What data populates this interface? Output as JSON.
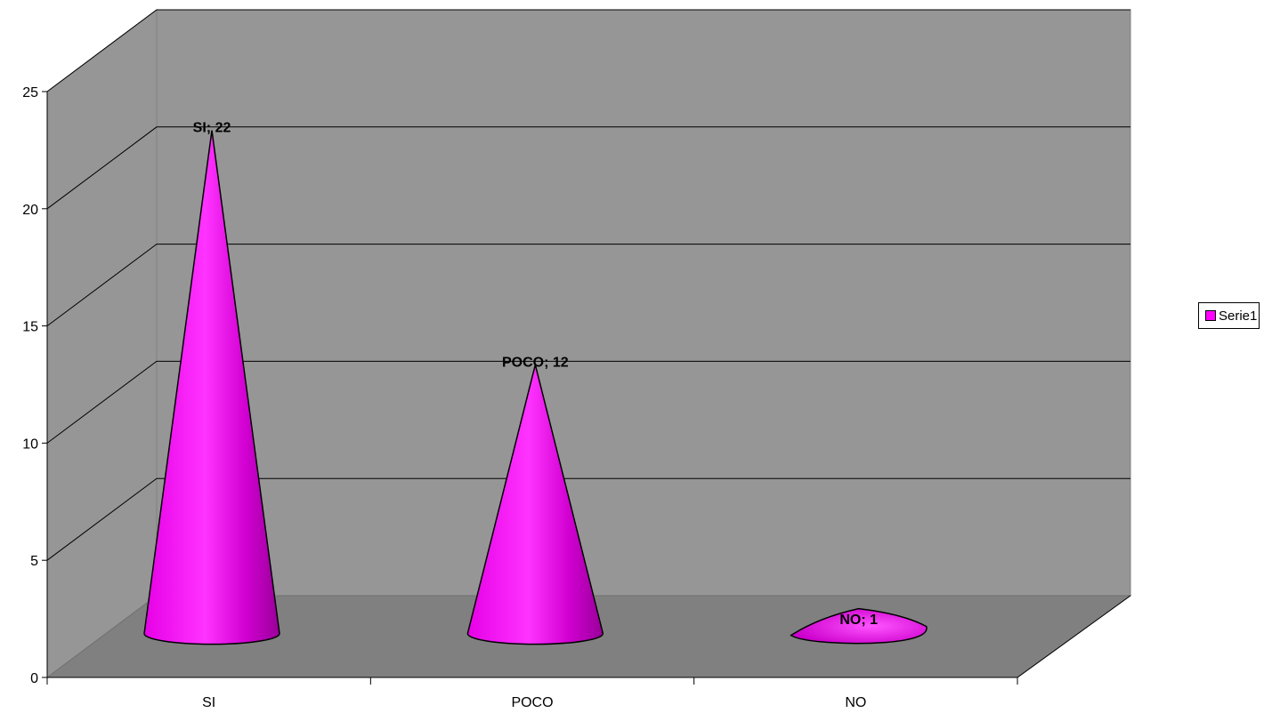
{
  "chart_data": {
    "type": "bar",
    "shape": "cone",
    "view": "3d",
    "categories": [
      "SI",
      "POCO",
      "NO"
    ],
    "series": [
      {
        "name": "Serie1",
        "values": [
          22,
          12,
          1
        ]
      }
    ],
    "data_labels": [
      "SI; 22",
      "POCO; 12",
      "NO; 1"
    ],
    "y_ticks": [
      "0",
      "5",
      "10",
      "15",
      "20",
      "25"
    ],
    "ylim": [
      0,
      25
    ],
    "title": "",
    "xlabel": "",
    "ylabel": "",
    "grid": true,
    "legend": "right",
    "colors": {
      "series": "#FF00FF",
      "wall": "#969696",
      "floor": "#808080",
      "grid": "#000000"
    }
  },
  "legend": {
    "label": "Serie1"
  }
}
